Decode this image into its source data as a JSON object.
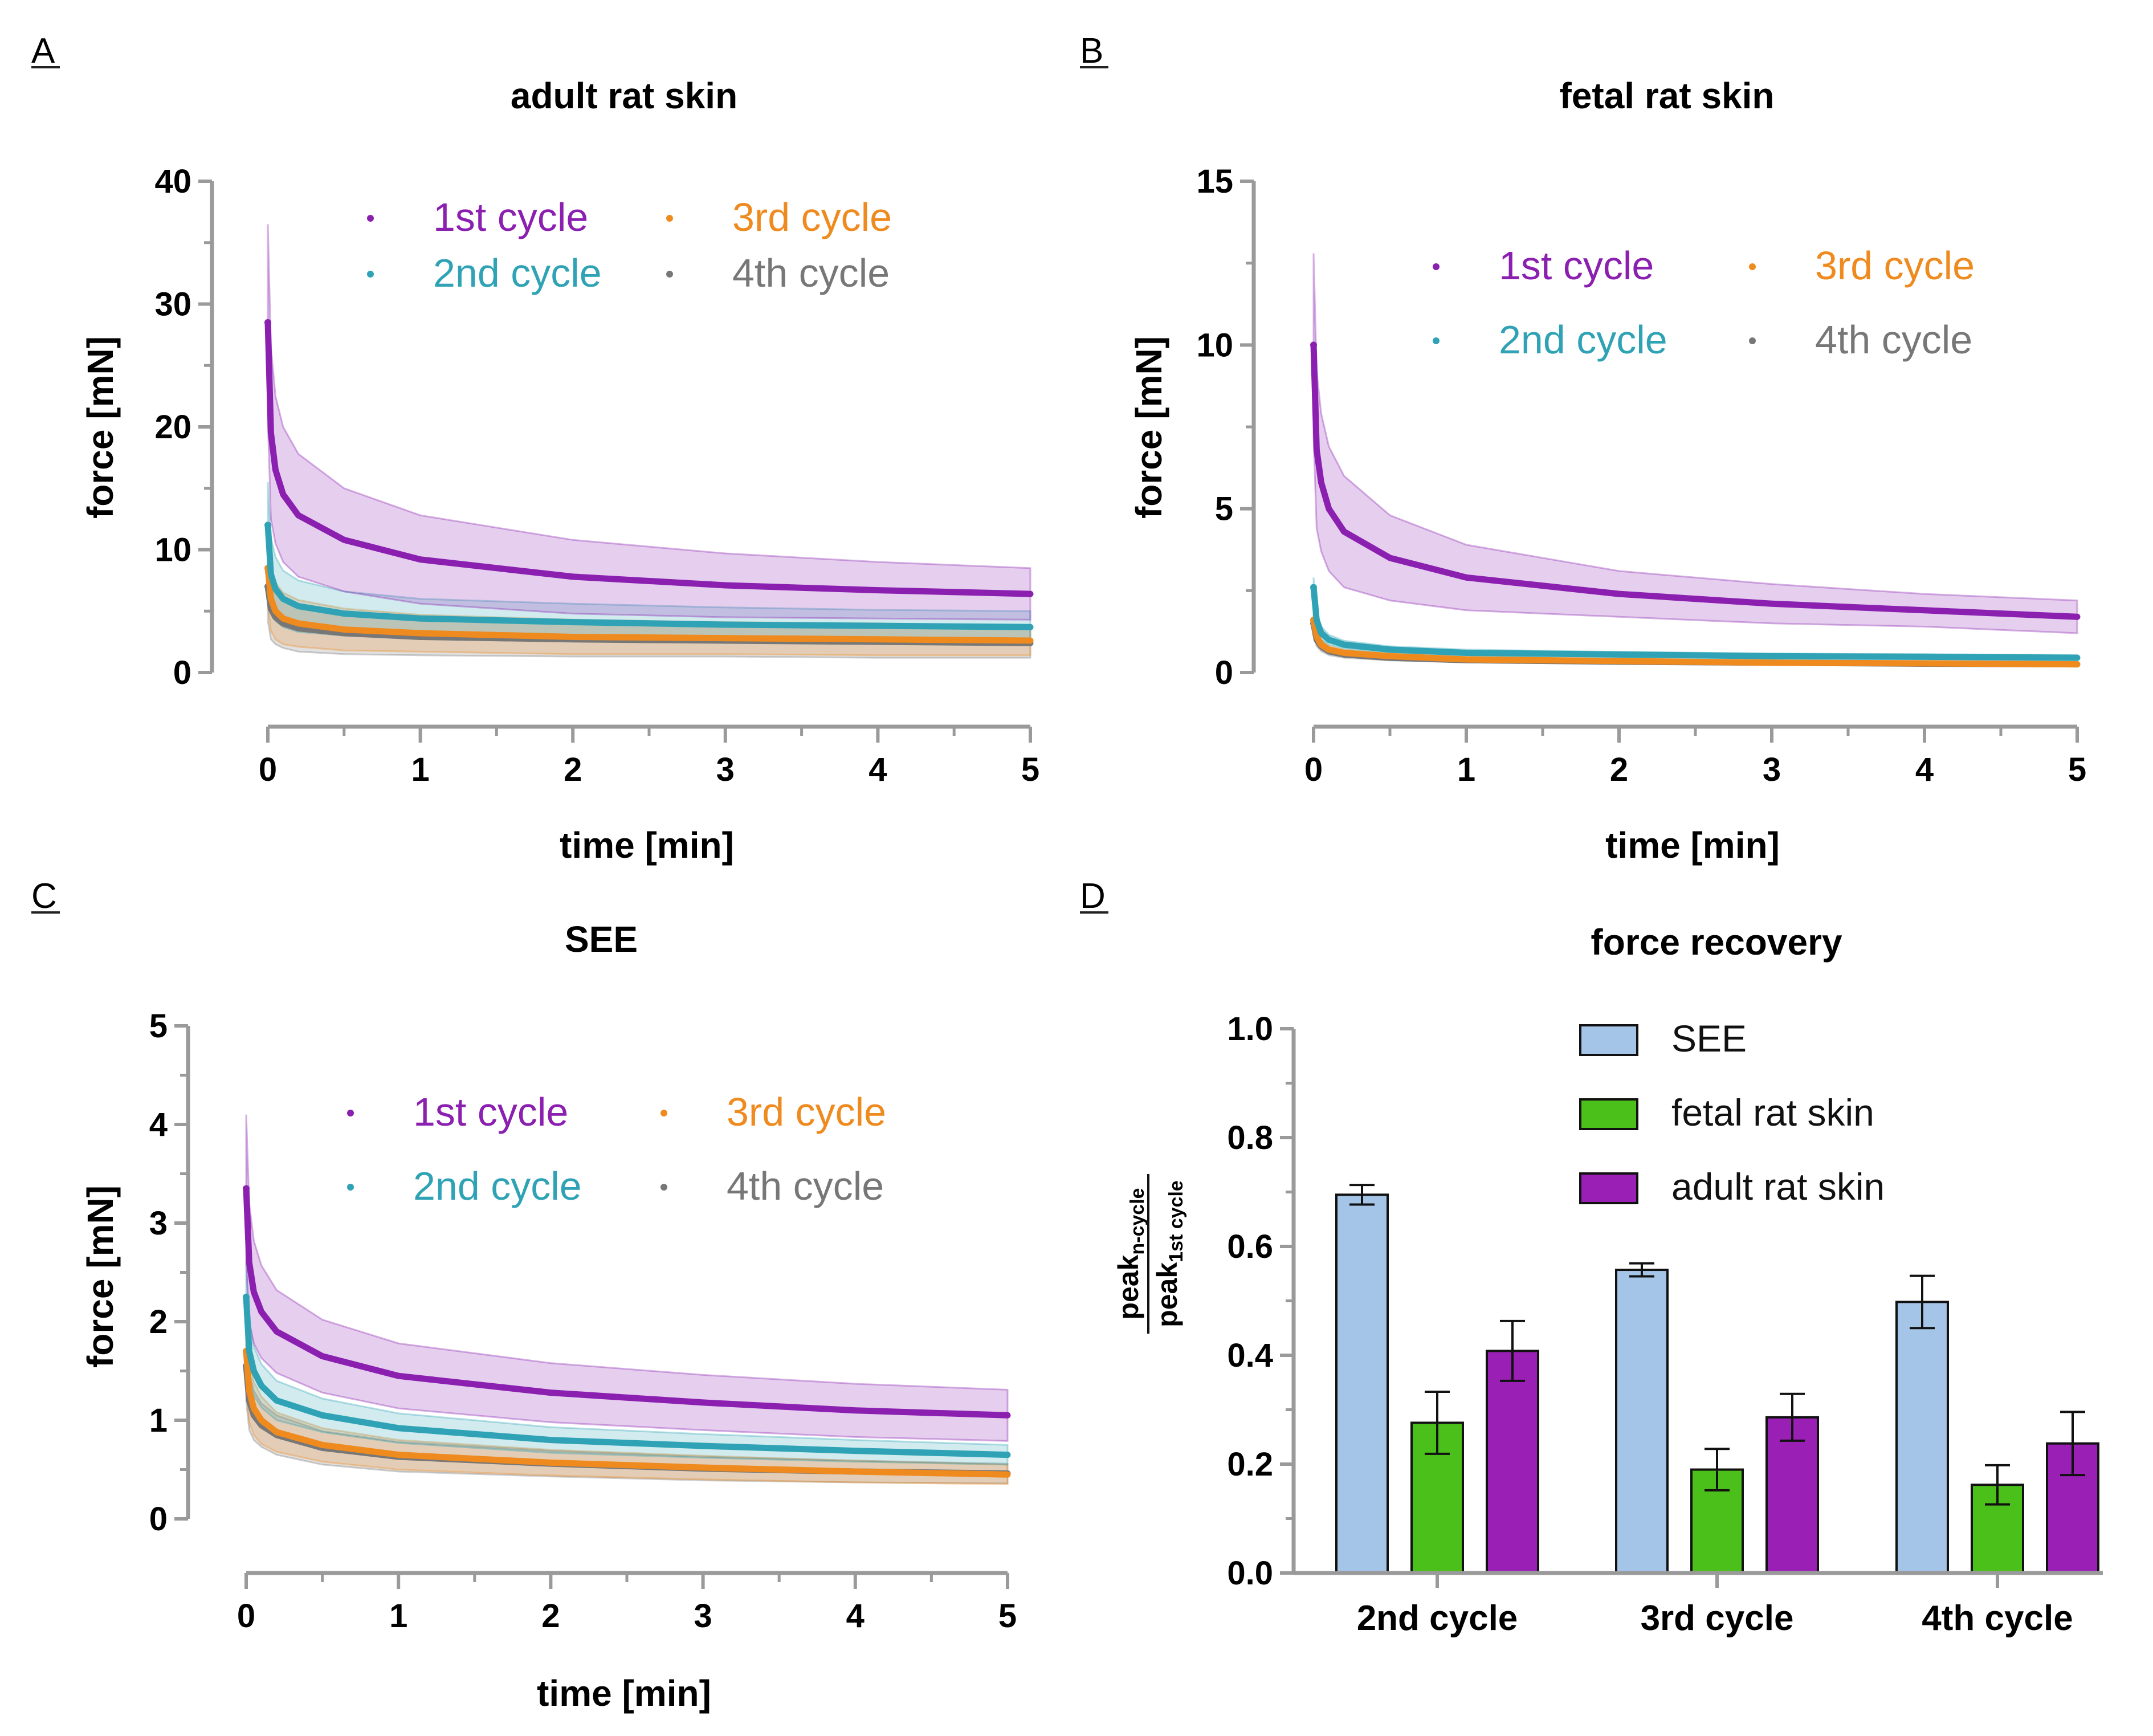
{
  "figure": {
    "panels": [
      {
        "letter": "A",
        "title": "adult rat skin",
        "xlabel": "time [min]",
        "ylabel": "force [mN]"
      },
      {
        "letter": "B",
        "title": "fetal rat skin",
        "xlabel": "time [min]",
        "ylabel": "force [mN]"
      },
      {
        "letter": "C",
        "title": "SEE",
        "xlabel": "time [min]",
        "ylabel": "force [mN]"
      },
      {
        "letter": "D",
        "title": "force recovery",
        "ylabel_num": "peak",
        "ylabel_num_sub": "n-cycle",
        "ylabel_den": "peak",
        "ylabel_den_sub": "1st cycle"
      }
    ],
    "colors": {
      "c1": "#8a1fb0",
      "c2": "#2fa3b5",
      "c3": "#ef8a1e",
      "c4": "#777777",
      "SEE": "#a5c5e8",
      "fetal": "#4cc01a",
      "adult": "#9a1fb4"
    }
  },
  "chart_data": [
    {
      "type": "line",
      "title": "adult rat skin",
      "xlabel": "time [min]",
      "ylabel": "force [mN]",
      "xlim": [
        0,
        5
      ],
      "ylim": [
        0,
        40
      ],
      "xticks": [
        0,
        1,
        2,
        3,
        4,
        5
      ],
      "yticks": [
        0,
        10,
        20,
        30,
        40
      ],
      "legend": [
        "1st cycle",
        "2nd cycle",
        "3rd cycle",
        "4th cycle"
      ],
      "series": [
        {
          "name": "1st cycle",
          "color": "#8a1fb0",
          "x": [
            0,
            0.02,
            0.05,
            0.1,
            0.2,
            0.5,
            1,
            2,
            3,
            4,
            5
          ],
          "mean": [
            28.5,
            19.5,
            16.5,
            14.5,
            12.8,
            10.8,
            9.2,
            7.8,
            7.1,
            6.7,
            6.4
          ],
          "sd": [
            8,
            7,
            6,
            5.5,
            5,
            4.2,
            3.6,
            3,
            2.6,
            2.3,
            2.1
          ]
        },
        {
          "name": "2nd cycle",
          "color": "#2fa3b5",
          "x": [
            0,
            0.02,
            0.05,
            0.1,
            0.2,
            0.5,
            1,
            2,
            3,
            4,
            5
          ],
          "mean": [
            12,
            8,
            6.8,
            6,
            5.4,
            4.8,
            4.4,
            4.1,
            3.9,
            3.8,
            3.7
          ],
          "sd": [
            3.5,
            3,
            2.6,
            2.3,
            2.1,
            1.8,
            1.6,
            1.5,
            1.4,
            1.3,
            1.3
          ]
        },
        {
          "name": "3rd cycle",
          "color": "#ef8a1e",
          "x": [
            0,
            0.02,
            0.05,
            0.1,
            0.2,
            0.5,
            1,
            2,
            3,
            4,
            5
          ],
          "mean": [
            8.5,
            6,
            5,
            4.4,
            4,
            3.5,
            3.2,
            2.9,
            2.8,
            2.7,
            2.6
          ],
          "sd": [
            3,
            2.6,
            2.3,
            2.1,
            1.9,
            1.7,
            1.5,
            1.4,
            1.3,
            1.3,
            1.2
          ]
        },
        {
          "name": "4th cycle",
          "color": "#777777",
          "x": [
            0,
            0.02,
            0.05,
            0.1,
            0.2,
            0.5,
            1,
            2,
            3,
            4,
            5
          ],
          "mean": [
            7,
            5.2,
            4.5,
            4,
            3.6,
            3.2,
            2.9,
            2.7,
            2.6,
            2.5,
            2.4
          ],
          "sd": [
            2.8,
            2.5,
            2.2,
            2,
            1.9,
            1.7,
            1.5,
            1.4,
            1.3,
            1.3,
            1.2
          ]
        }
      ]
    },
    {
      "type": "line",
      "title": "fetal rat skin",
      "xlabel": "time [min]",
      "ylabel": "force [mN]",
      "xlim": [
        0,
        5
      ],
      "ylim": [
        0,
        15
      ],
      "xticks": [
        0,
        1,
        2,
        3,
        4,
        5
      ],
      "yticks": [
        0,
        5,
        10,
        15
      ],
      "legend": [
        "1st cycle",
        "2nd cycle",
        "3rd cycle",
        "4th cycle"
      ],
      "series": [
        {
          "name": "1st cycle",
          "color": "#8a1fb0",
          "x": [
            0,
            0.02,
            0.05,
            0.1,
            0.2,
            0.5,
            1,
            2,
            3,
            4,
            5
          ],
          "mean": [
            10,
            6.8,
            5.8,
            5,
            4.3,
            3.5,
            2.9,
            2.4,
            2.1,
            1.9,
            1.7
          ],
          "sd": [
            2.8,
            2.4,
            2.1,
            1.9,
            1.7,
            1.3,
            1,
            0.7,
            0.6,
            0.5,
            0.5
          ]
        },
        {
          "name": "2nd cycle",
          "color": "#2fa3b5",
          "x": [
            0,
            0.02,
            0.05,
            0.1,
            0.2,
            0.5,
            1,
            2,
            3,
            4,
            5
          ],
          "mean": [
            2.6,
            1.6,
            1.2,
            1,
            0.85,
            0.7,
            0.6,
            0.55,
            0.5,
            0.48,
            0.45
          ],
          "sd": [
            0.3,
            0.25,
            0.2,
            0.15,
            0.12,
            0.1,
            0.1,
            0.08,
            0.08,
            0.08,
            0.08
          ]
        },
        {
          "name": "3rd cycle",
          "color": "#ef8a1e",
          "x": [
            0,
            0.02,
            0.05,
            0.1,
            0.2,
            0.5,
            1,
            2,
            3,
            4,
            5
          ],
          "mean": [
            1.6,
            1.1,
            0.85,
            0.7,
            0.6,
            0.5,
            0.4,
            0.35,
            0.3,
            0.28,
            0.25
          ],
          "sd": [
            0.3,
            0.2,
            0.15,
            0.12,
            0.1,
            0.08,
            0.07,
            0.06,
            0.06,
            0.05,
            0.05
          ]
        },
        {
          "name": "4th cycle",
          "color": "#777777",
          "x": [
            0,
            0.02,
            0.05,
            0.1,
            0.2,
            0.5,
            1,
            2,
            3,
            4,
            5
          ],
          "mean": [
            1.5,
            1,
            0.8,
            0.65,
            0.55,
            0.45,
            0.38,
            0.33,
            0.3,
            0.27,
            0.25
          ],
          "sd": [
            0.3,
            0.2,
            0.15,
            0.12,
            0.1,
            0.08,
            0.07,
            0.06,
            0.06,
            0.05,
            0.05
          ]
        }
      ]
    },
    {
      "type": "line",
      "title": "SEE",
      "xlabel": "time [min]",
      "ylabel": "force [mN]",
      "xlim": [
        0,
        5
      ],
      "ylim": [
        0,
        5
      ],
      "xticks": [
        0,
        1,
        2,
        3,
        4,
        5
      ],
      "yticks": [
        0,
        1,
        2,
        3,
        4,
        5
      ],
      "legend": [
        "1st cycle",
        "2nd cycle",
        "3rd cycle",
        "4th cycle"
      ],
      "series": [
        {
          "name": "1st cycle",
          "color": "#8a1fb0",
          "x": [
            0,
            0.02,
            0.05,
            0.1,
            0.2,
            0.5,
            1,
            2,
            3,
            4,
            5
          ],
          "mean": [
            3.35,
            2.6,
            2.3,
            2.1,
            1.9,
            1.65,
            1.45,
            1.28,
            1.18,
            1.1,
            1.05
          ],
          "sd": [
            0.75,
            0.6,
            0.52,
            0.47,
            0.42,
            0.37,
            0.33,
            0.3,
            0.28,
            0.27,
            0.26
          ]
        },
        {
          "name": "2nd cycle",
          "color": "#2fa3b5",
          "x": [
            0,
            0.02,
            0.05,
            0.1,
            0.2,
            0.5,
            1,
            2,
            3,
            4,
            5
          ],
          "mean": [
            2.25,
            1.7,
            1.5,
            1.35,
            1.2,
            1.05,
            0.92,
            0.8,
            0.74,
            0.69,
            0.65
          ],
          "sd": [
            0.35,
            0.3,
            0.25,
            0.22,
            0.2,
            0.17,
            0.15,
            0.13,
            0.12,
            0.11,
            0.1
          ]
        },
        {
          "name": "3rd cycle",
          "color": "#ef8a1e",
          "x": [
            0,
            0.02,
            0.05,
            0.1,
            0.2,
            0.5,
            1,
            2,
            3,
            4,
            5
          ],
          "mean": [
            1.7,
            1.3,
            1.12,
            1,
            0.88,
            0.75,
            0.65,
            0.57,
            0.52,
            0.48,
            0.45
          ],
          "sd": [
            0.4,
            0.32,
            0.27,
            0.24,
            0.2,
            0.17,
            0.15,
            0.13,
            0.12,
            0.11,
            0.1
          ]
        },
        {
          "name": "4th cycle",
          "color": "#777777",
          "x": [
            0,
            0.02,
            0.05,
            0.1,
            0.2,
            0.5,
            1,
            2,
            3,
            4,
            5
          ],
          "mean": [
            1.55,
            1.2,
            1.05,
            0.95,
            0.85,
            0.72,
            0.63,
            0.56,
            0.51,
            0.48,
            0.46
          ],
          "sd": [
            0.35,
            0.3,
            0.25,
            0.22,
            0.2,
            0.17,
            0.15,
            0.13,
            0.12,
            0.11,
            0.1
          ]
        }
      ]
    },
    {
      "type": "bar",
      "title": "force recovery",
      "ylabel": "peak n-cycle / peak 1st cycle",
      "ylim": [
        0,
        1.0
      ],
      "yticks": [
        "0.0",
        "0.2",
        "0.4",
        "0.6",
        "0.8",
        "1.0"
      ],
      "categories": [
        "2nd cycle",
        "3rd cycle",
        "4th cycle"
      ],
      "legend": [
        "SEE",
        "fetal rat skin",
        "adult rat skin"
      ],
      "series": [
        {
          "name": "SEE",
          "color": "#a5c5e8",
          "values": [
            0.695,
            0.557,
            0.498
          ],
          "errors": [
            0.018,
            0.012,
            0.048
          ]
        },
        {
          "name": "fetal rat skin",
          "color": "#4cc01a",
          "values": [
            0.276,
            0.19,
            0.162
          ],
          "errors": [
            0.057,
            0.038,
            0.036
          ]
        },
        {
          "name": "adult rat skin",
          "color": "#9a1fb4",
          "values": [
            0.408,
            0.286,
            0.238
          ],
          "errors": [
            0.055,
            0.043,
            0.058
          ]
        }
      ]
    }
  ]
}
